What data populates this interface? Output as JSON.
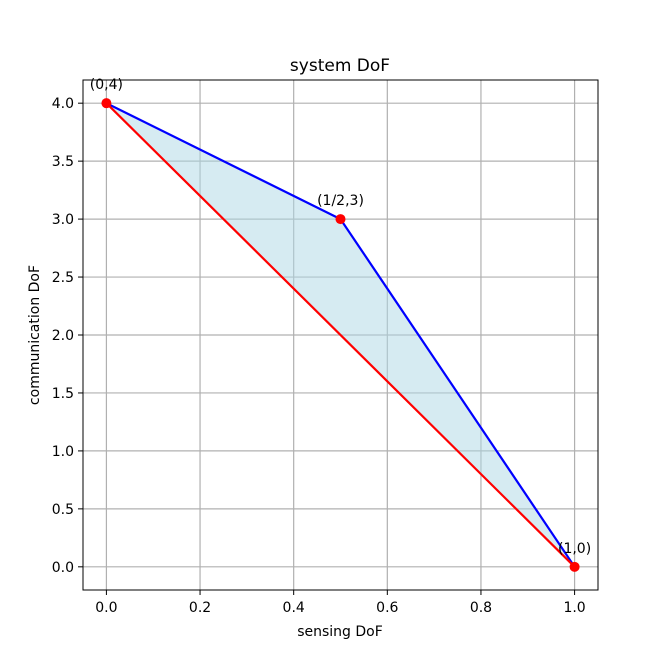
{
  "chart_data": {
    "type": "line",
    "title": "system DoF",
    "xlabel": "sensing DoF",
    "ylabel": "communication DoF",
    "xlim": [
      -0.05,
      1.05
    ],
    "ylim": [
      -0.2,
      4.2
    ],
    "grid": true,
    "xticks": [
      0.0,
      0.2,
      0.4,
      0.6,
      0.8,
      1.0
    ],
    "xtick_labels": [
      "0.0",
      "0.2",
      "0.4",
      "0.6",
      "0.8",
      "1.0"
    ],
    "yticks": [
      0.0,
      0.5,
      1.0,
      1.5,
      2.0,
      2.5,
      3.0,
      3.5,
      4.0
    ],
    "ytick_labels": [
      "0.0",
      "0.5",
      "1.0",
      "1.5",
      "2.0",
      "2.5",
      "3.0",
      "3.5",
      "4.0"
    ],
    "series": [
      {
        "x": [
          0,
          0.5,
          1
        ],
        "y": [
          4,
          3,
          0
        ],
        "color": "#0000ff"
      },
      {
        "x": [
          0,
          1
        ],
        "y": [
          4,
          0
        ],
        "color": "#ff0000"
      }
    ],
    "fill": {
      "color": "#add8e6",
      "opacity": 0.5
    },
    "points": [
      {
        "x": 0,
        "y": 4,
        "label": "(0,4)"
      },
      {
        "x": 0.5,
        "y": 3,
        "label": "(1/2,3)"
      },
      {
        "x": 1,
        "y": 0,
        "label": "(1,0)"
      }
    ],
    "point_color": "#ff0000"
  }
}
